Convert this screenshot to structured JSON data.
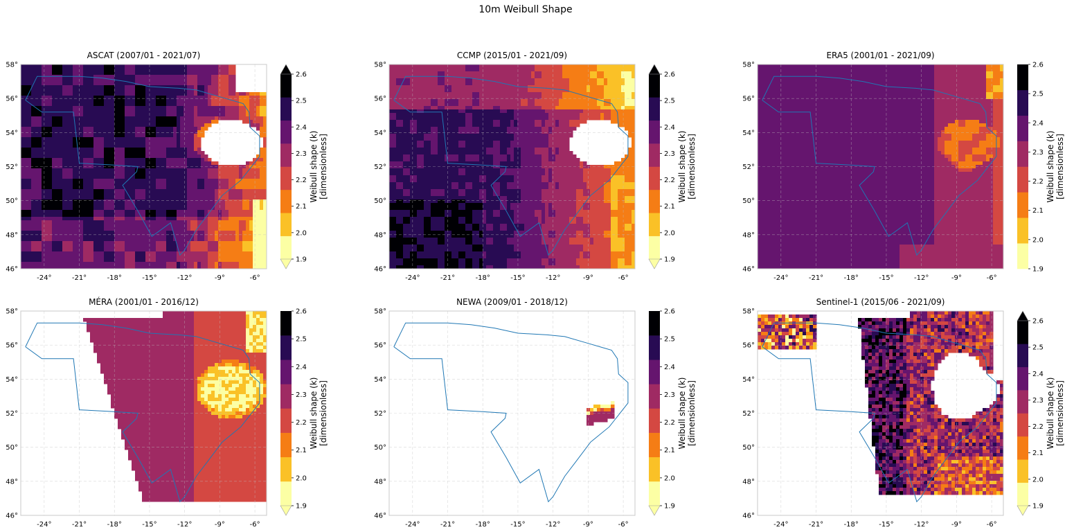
{
  "figure": {
    "title": "10m Weibull Shape"
  },
  "colors": {
    "frame": "#c8c8c8",
    "grid": "#bfbfbf",
    "boundary": "#1f77b4",
    "land_fill": "#ffffff"
  },
  "colormap": {
    "name": "inferno",
    "levels": [
      1.9,
      2.0,
      2.1,
      2.2,
      2.3,
      2.4,
      2.5,
      2.6
    ],
    "bin_colors": [
      "#fcffa4",
      "#fac127",
      "#f57d15",
      "#d44842",
      "#9f2a63",
      "#65156e",
      "#280b53",
      "#000004"
    ],
    "under_color": "#fcffa4",
    "over_color": "#000004"
  },
  "chart_data": [
    {
      "type": "heatmap",
      "title": "ASCAT (2007/01 - 2021/07)",
      "x_ticks": [
        "-24°",
        "-21°",
        "-18°",
        "-15°",
        "-12°",
        "-9°",
        "-6°"
      ],
      "y_ticks": [
        "46°",
        "48°",
        "50°",
        "52°",
        "54°",
        "56°",
        "58°"
      ],
      "xlim": [
        -26,
        -5
      ],
      "ylim": [
        46,
        58
      ],
      "colorbar": {
        "label": "Weibull shape (k)",
        "units": "[dimensionless]",
        "ticks": [
          "1.9",
          "2.0",
          "2.1",
          "2.2",
          "2.3",
          "2.4",
          "2.5",
          "2.6"
        ],
        "extend": "both"
      },
      "pattern": "ascat"
    },
    {
      "type": "heatmap",
      "title": "CCMP (2015/01 - 2021/09)",
      "x_ticks": [
        "-24°",
        "-21°",
        "-18°",
        "-15°",
        "-12°",
        "-9°",
        "-6°"
      ],
      "y_ticks": [
        "46°",
        "48°",
        "50°",
        "52°",
        "54°",
        "56°",
        "58°"
      ],
      "xlim": [
        -26,
        -5
      ],
      "ylim": [
        46,
        58
      ],
      "colorbar": {
        "label": "Weibull shape (k)",
        "units": "[dimensionless]",
        "ticks": [
          "1.9",
          "2.0",
          "2.1",
          "2.2",
          "2.3",
          "2.4",
          "2.5",
          "2.6"
        ],
        "extend": "both"
      },
      "pattern": "ccmp"
    },
    {
      "type": "heatmap",
      "title": "ERA5 (2001/01 - 2021/09)",
      "x_ticks": [
        "-24°",
        "-21°",
        "-18°",
        "-15°",
        "-12°",
        "-9°",
        "-6°"
      ],
      "y_ticks": [
        "46°",
        "48°",
        "50°",
        "52°",
        "54°",
        "56°",
        "58°"
      ],
      "xlim": [
        -26,
        -5
      ],
      "ylim": [
        46,
        58
      ],
      "colorbar": {
        "label": "Weibull shape (k)",
        "units": "[dimensionless]",
        "ticks": [
          "1.9",
          "2.0",
          "2.1",
          "2.2",
          "2.3",
          "2.4",
          "2.5",
          "2.6"
        ],
        "extend": "neither"
      },
      "pattern": "era5"
    },
    {
      "type": "heatmap",
      "title": "MÉRA (2001/01 - 2016/12)",
      "x_ticks": [
        "-24°",
        "-21°",
        "-18°",
        "-15°",
        "-12°",
        "-9°",
        "-6°"
      ],
      "y_ticks": [
        "46°",
        "48°",
        "50°",
        "52°",
        "54°",
        "56°",
        "58°"
      ],
      "xlim": [
        -26,
        -5
      ],
      "ylim": [
        46,
        58
      ],
      "colorbar": {
        "label": "Weibull shape (k)",
        "units": "[dimensionless]",
        "ticks": [
          "1.9",
          "2.0",
          "2.1",
          "2.2",
          "2.3",
          "2.4",
          "2.5",
          "2.6"
        ],
        "extend": "min"
      },
      "pattern": "mera"
    },
    {
      "type": "heatmap",
      "title": "NEWA (2009/01 - 2018/12)",
      "x_ticks": [
        "-24°",
        "-21°",
        "-18°",
        "-15°",
        "-12°",
        "-9°",
        "-6°"
      ],
      "y_ticks": [
        "46°",
        "48°",
        "50°",
        "52°",
        "54°",
        "56°",
        "58°"
      ],
      "xlim": [
        -26,
        -5
      ],
      "ylim": [
        46,
        58
      ],
      "colorbar": {
        "label": "Weibull shape (k)",
        "units": "[dimensionless]",
        "ticks": [
          "1.9",
          "2.0",
          "2.1",
          "2.2",
          "2.3",
          "2.4",
          "2.5",
          "2.6"
        ],
        "extend": "min"
      },
      "pattern": "newa"
    },
    {
      "type": "heatmap",
      "title": "Sentinel-1 (2015/06 - 2021/09)",
      "x_ticks": [
        "-24°",
        "-21°",
        "-18°",
        "-15°",
        "-12°",
        "-9°",
        "-6°"
      ],
      "y_ticks": [
        "46°",
        "48°",
        "50°",
        "52°",
        "54°",
        "56°",
        "58°"
      ],
      "xlim": [
        -26,
        -5
      ],
      "ylim": [
        46,
        58
      ],
      "colorbar": {
        "label": "Weibull shape (k)",
        "units": "[dimensionless]",
        "ticks": [
          "1.9",
          "2.0",
          "2.1",
          "2.2",
          "2.3",
          "2.4",
          "2.5",
          "2.6"
        ],
        "extend": "both"
      },
      "pattern": "s1"
    }
  ]
}
